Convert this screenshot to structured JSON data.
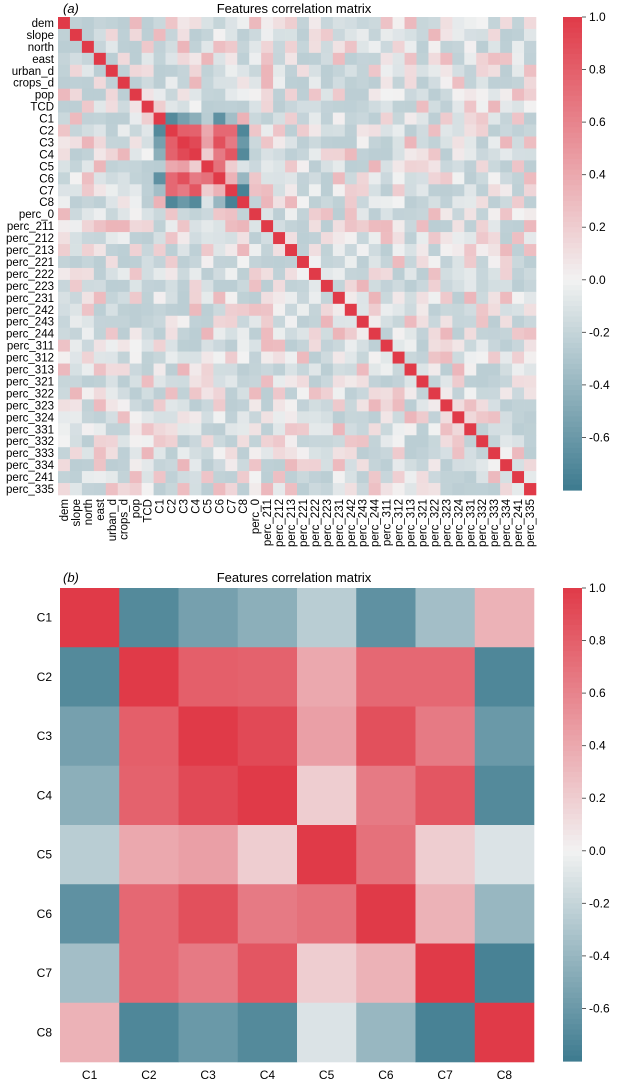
{
  "panels": [
    {
      "panel_label": "(a)",
      "title": "Features correlation matrix",
      "chart_data": {
        "type": "heatmap",
        "title": "Features correlation matrix",
        "row_labels": [
          "dem",
          "slope",
          "north",
          "east",
          "urban_d",
          "crops_d",
          "pop",
          "TCD",
          "C1",
          "C2",
          "C3",
          "C4",
          "C5",
          "C6",
          "C7",
          "C8",
          "perc_0",
          "perc_211",
          "perc_212",
          "perc_213",
          "perc_221",
          "perc_222",
          "perc_223",
          "perc_231",
          "perc_242",
          "perc_243",
          "perc_244",
          "perc_311",
          "perc_312",
          "perc_313",
          "perc_321",
          "perc_322",
          "perc_323",
          "perc_324",
          "perc_331",
          "perc_332",
          "perc_333",
          "perc_334",
          "perc_241",
          "perc_335"
        ],
        "col_labels": [
          "dem",
          "slope",
          "north",
          "east",
          "urban_d",
          "crops_d",
          "pop",
          "TCD",
          "C1",
          "C2",
          "C3",
          "C4",
          "C5",
          "C6",
          "C7",
          "C8",
          "perc_0",
          "perc_211",
          "perc_212",
          "perc_213",
          "perc_221",
          "perc_222",
          "perc_223",
          "perc_231",
          "perc_242",
          "perc_243",
          "perc_244",
          "perc_311",
          "perc_312",
          "perc_313",
          "perc_321",
          "perc_322",
          "perc_323",
          "perc_324",
          "perc_331",
          "perc_332",
          "perc_333",
          "perc_334",
          "perc_241",
          "perc_335"
        ],
        "diagonal": 1.0,
        "block_values_C1_C8": [
          [
            1.0,
            -0.7,
            -0.55,
            -0.45,
            -0.25,
            -0.65,
            -0.35,
            0.35
          ],
          [
            -0.7,
            1.0,
            0.8,
            0.78,
            0.4,
            0.75,
            0.75,
            -0.72
          ],
          [
            -0.55,
            0.8,
            1.0,
            0.92,
            0.45,
            0.88,
            0.65,
            -0.6
          ],
          [
            -0.45,
            0.78,
            0.92,
            1.0,
            0.2,
            0.65,
            0.85,
            -0.7
          ],
          [
            -0.25,
            0.4,
            0.45,
            0.2,
            1.0,
            0.7,
            0.2,
            -0.1
          ],
          [
            -0.65,
            0.75,
            0.88,
            0.65,
            0.7,
            1.0,
            0.35,
            -0.4
          ],
          [
            -0.35,
            0.75,
            0.65,
            0.85,
            0.2,
            0.35,
            1.0,
            -0.75
          ],
          [
            0.35,
            -0.72,
            -0.6,
            -0.7,
            -0.1,
            -0.4,
            -0.75,
            1.0
          ]
        ],
        "other_offdiagonal_range": [
          -0.35,
          0.45
        ],
        "colorbar": {
          "vmin": -0.8,
          "vmax": 1.0,
          "ticks": [
            "1.0",
            "0.8",
            "0.6",
            "0.4",
            "0.2",
            "0.0",
            "-0.2",
            "-0.4",
            "-0.6"
          ]
        }
      }
    },
    {
      "panel_label": "(b)",
      "title": "Features correlation matrix",
      "chart_data": {
        "type": "heatmap",
        "title": "Features correlation matrix",
        "row_labels": [
          "C1",
          "C2",
          "C3",
          "C4",
          "C5",
          "C6",
          "C7",
          "C8"
        ],
        "col_labels": [
          "C1",
          "C2",
          "C3",
          "C4",
          "C5",
          "C6",
          "C7",
          "C8"
        ],
        "values": [
          [
            1.0,
            -0.7,
            -0.55,
            -0.45,
            -0.25,
            -0.65,
            -0.35,
            0.35
          ],
          [
            -0.7,
            1.0,
            0.8,
            0.78,
            0.4,
            0.75,
            0.75,
            -0.72
          ],
          [
            -0.55,
            0.8,
            1.0,
            0.92,
            0.45,
            0.88,
            0.65,
            -0.6
          ],
          [
            -0.45,
            0.78,
            0.92,
            1.0,
            0.2,
            0.65,
            0.85,
            -0.7
          ],
          [
            -0.25,
            0.4,
            0.45,
            0.2,
            1.0,
            0.7,
            0.2,
            -0.1
          ],
          [
            -0.65,
            0.75,
            0.88,
            0.65,
            0.7,
            1.0,
            0.35,
            -0.4
          ],
          [
            -0.35,
            0.75,
            0.65,
            0.85,
            0.2,
            0.35,
            1.0,
            -0.75
          ],
          [
            0.35,
            -0.72,
            -0.6,
            -0.7,
            -0.1,
            -0.4,
            -0.75,
            1.0
          ]
        ],
        "colorbar": {
          "vmin": -0.8,
          "vmax": 1.0,
          "ticks": [
            "1.0",
            "0.8",
            "0.6",
            "0.4",
            "0.2",
            "0.0",
            "-0.2",
            "-0.4",
            "-0.6"
          ]
        }
      }
    }
  ],
  "colors": {
    "neg": "#3d7b8f",
    "mid": "#f2f2f2",
    "pos": "#e03a48"
  }
}
